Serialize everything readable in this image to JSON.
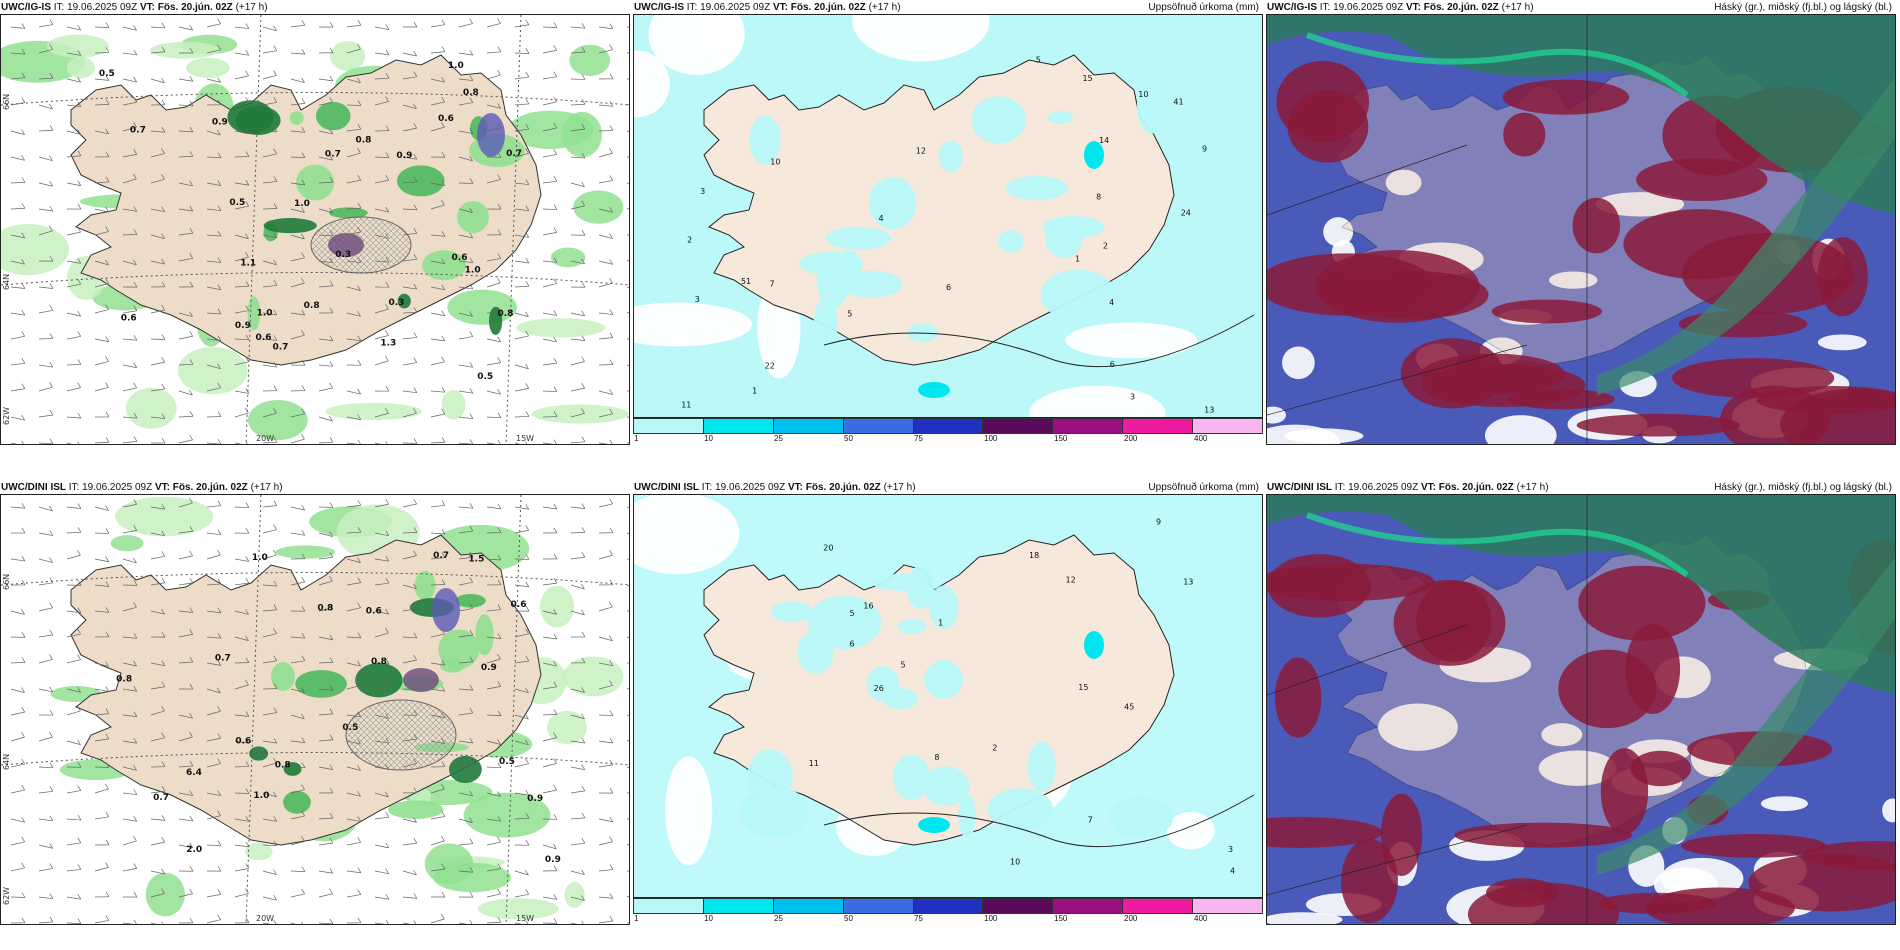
{
  "panels": [
    {
      "model": "UWC/IG-IS",
      "it": "IT: 19.06.2025 09Z",
      "vt": "VT: Fös. 20.jún. 02Z",
      "lead": "(+17 h)",
      "right": "",
      "type": "wind"
    },
    {
      "model": "UWC/IG-IS",
      "it": "IT: 19.06.2025 09Z",
      "vt": "VT: Fös. 20.jún. 02Z",
      "lead": "(+17 h)",
      "right": "Uppsöfnuð úrkoma (mm)",
      "type": "precip"
    },
    {
      "model": "UWC/IG-IS",
      "it": "IT: 19.06.2025 09Z",
      "vt": "VT: Fös. 20.jún. 02Z",
      "lead": "(+17 h)",
      "right": "Háský (gr.), miðský (fj.bl.) og lágský (bl.)",
      "type": "cloud"
    },
    {
      "model": "UWC/DINI ISL",
      "it": "IT: 19.06.2025 09Z",
      "vt": "VT: Fös. 20.jún. 02Z",
      "lead": "(+17 h)",
      "right": "",
      "type": "wind"
    },
    {
      "model": "UWC/DINI ISL",
      "it": "IT: 19.06.2025 09Z",
      "vt": "VT: Fös. 20.jún. 02Z",
      "lead": "(+17 h)",
      "right": "Uppsöfnuð úrkoma (mm)",
      "type": "precip"
    },
    {
      "model": "UWC/DINI ISL",
      "it": "IT: 19.06.2025 09Z",
      "vt": "VT: Fös. 20.jún. 02Z",
      "lead": "(+17 h)",
      "right": "Háský (gr.), miðský (fj.bl.) og lágský (bl.)",
      "type": "cloud"
    }
  ],
  "grid": {
    "lat_labels": [
      "66N",
      "64N",
      "62W"
    ],
    "lon_labels": [
      "20W",
      "15W"
    ]
  },
  "colorbar": {
    "ticks": [
      "1",
      "10",
      "25",
      "50",
      "75",
      "100",
      "150",
      "200",
      "400"
    ],
    "colors": [
      "#b8f8f8",
      "#00e6ee",
      "#00bfef",
      "#3b6de0",
      "#2030c0",
      "#5a0a5a",
      "#9a1080",
      "#ee1aa0",
      "#f7b6ee"
    ]
  },
  "wind_values_top": [
    "0.7",
    "0.7",
    "0.6",
    "0.9",
    "1.1",
    "0.5",
    "0.7",
    "1.0",
    "0.8",
    "0.8",
    "1.0",
    "0.5",
    "0.3",
    "0.3",
    "0.6",
    "0.5",
    "0.7",
    "0.6",
    "1.3",
    "1.0",
    "0.6",
    "0.9",
    "0.8",
    "1.0",
    "0.8",
    "0.9"
  ],
  "wind_values_bottom": [
    "0.8",
    "0.7",
    "0.9",
    "0.6",
    "0.7",
    "0.5",
    "0.9",
    "1.0",
    "0.7",
    "0.5",
    "0.6",
    "0.8",
    "1.0",
    "0.8",
    "0.9",
    "0.6",
    "2.0",
    "6.4",
    "0.8",
    "1.5"
  ],
  "precip_values_top": [
    "3",
    "2",
    "1",
    "3",
    "4",
    "5",
    "13",
    "41",
    "51",
    "10",
    "12",
    "6",
    "2",
    "8",
    "15",
    "24",
    "22",
    "10",
    "14",
    "11",
    "7",
    "9",
    "5",
    "3",
    "6",
    "4",
    "1"
  ],
  "precip_values_bottom": [
    "6",
    "5",
    "13",
    "18",
    "15",
    "26",
    "20",
    "45",
    "12",
    "2",
    "3",
    "11",
    "9",
    "10",
    "16",
    "8",
    "4",
    "5",
    "7",
    "1"
  ]
}
